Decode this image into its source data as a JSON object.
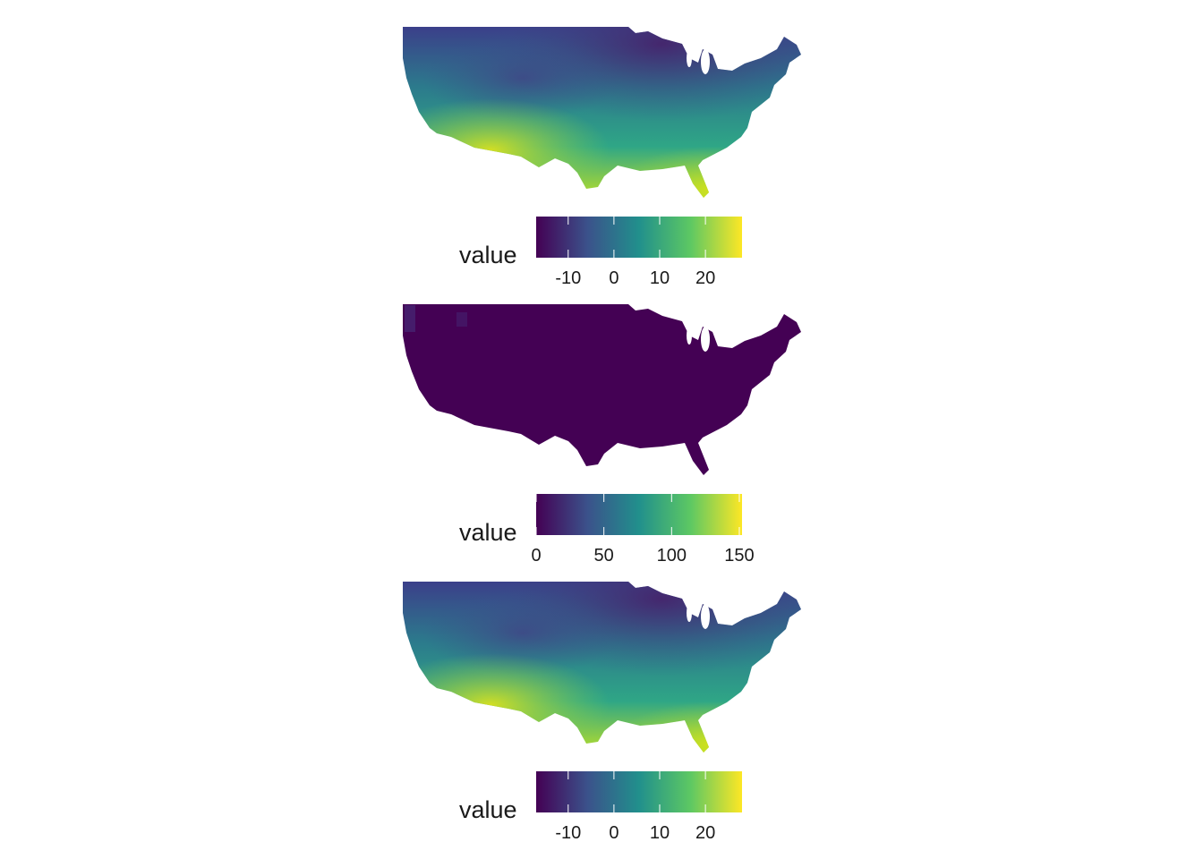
{
  "colors": {
    "viridis": [
      "#440154",
      "#3b528b",
      "#21908c",
      "#5dc863",
      "#fde725"
    ],
    "background": "#ffffff"
  },
  "panels": [
    {
      "legend": {
        "title": "value",
        "ticks": [
          "-10",
          "0",
          "10",
          "20"
        ],
        "tick_values": [
          -10,
          0,
          10,
          20
        ],
        "range": [
          -17,
          28
        ]
      },
      "fill_description": "temperature-like gradient, cooler north, warmer south"
    },
    {
      "legend": {
        "title": "value",
        "ticks": [
          "0",
          "50",
          "100",
          "150"
        ],
        "tick_values": [
          0,
          50,
          100,
          150
        ],
        "range": [
          0,
          152
        ]
      },
      "fill_description": "almost entirely near zero"
    },
    {
      "legend": {
        "title": "value",
        "ticks": [
          "-10",
          "0",
          "10",
          "20"
        ],
        "tick_values": [
          -10,
          0,
          10,
          20
        ],
        "range": [
          -17,
          28
        ]
      },
      "fill_description": "temperature-like gradient, cooler north, warmer south"
    }
  ]
}
